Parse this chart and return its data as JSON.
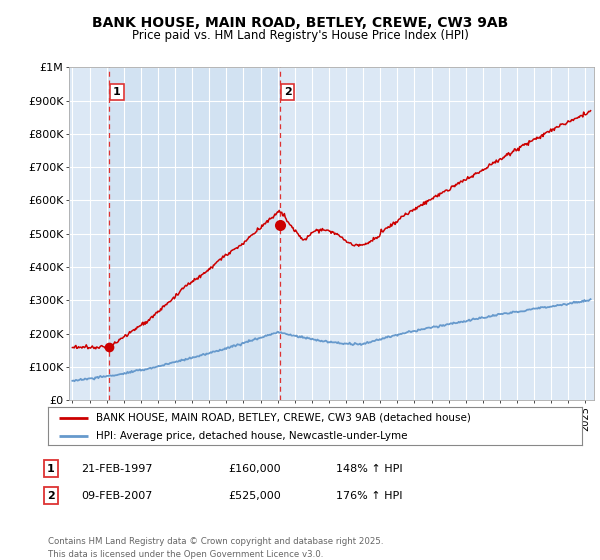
{
  "title": "BANK HOUSE, MAIN ROAD, BETLEY, CREWE, CW3 9AB",
  "subtitle": "Price paid vs. HM Land Registry's House Price Index (HPI)",
  "plot_bg_color": "#dce8f5",
  "highlight_color": "#ccdff0",
  "ylim": [
    0,
    1000000
  ],
  "yticks": [
    0,
    100000,
    200000,
    300000,
    400000,
    500000,
    600000,
    700000,
    800000,
    900000,
    1000000
  ],
  "ytick_labels": [
    "£0",
    "£100K",
    "£200K",
    "£300K",
    "£400K",
    "£500K",
    "£600K",
    "£700K",
    "£800K",
    "£900K",
    "£1M"
  ],
  "xlim_start": 1994.8,
  "xlim_end": 2025.5,
  "sale1_x": 1997.13,
  "sale1_y": 160000,
  "sale1_label": "1",
  "sale1_date": "21-FEB-1997",
  "sale1_price": "£160,000",
  "sale1_hpi": "148% ↑ HPI",
  "sale2_x": 2007.12,
  "sale2_y": 525000,
  "sale2_label": "2",
  "sale2_date": "09-FEB-2007",
  "sale2_price": "£525,000",
  "sale2_hpi": "176% ↑ HPI",
  "legend_line1": "BANK HOUSE, MAIN ROAD, BETLEY, CREWE, CW3 9AB (detached house)",
  "legend_line2": "HPI: Average price, detached house, Newcastle-under-Lyme",
  "footer": "Contains HM Land Registry data © Crown copyright and database right 2025.\nThis data is licensed under the Open Government Licence v3.0.",
  "red_color": "#cc0000",
  "blue_color": "#6699cc",
  "dashed_red": "#dd3333",
  "grid_color": "#ffffff",
  "spine_color": "#aaaaaa"
}
